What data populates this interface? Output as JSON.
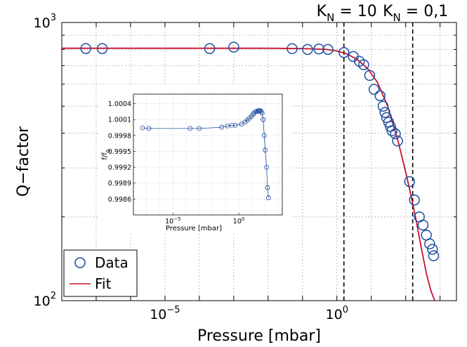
{
  "chart_data": [
    {
      "type": "scatter",
      "xlabel": "Pressure [mbar]",
      "ylabel": "Q−factor",
      "x_scale": "log",
      "y_scale": "log",
      "xlim": [
        1e-08,
        3000
      ],
      "ylim": [
        100,
        1000
      ],
      "x_ticks": [
        {
          "exp": "−5",
          "value": 1e-05
        },
        {
          "exp": "0",
          "value": 1
        }
      ],
      "y_ticks": [
        {
          "exp": "3",
          "value": 1000
        },
        {
          "exp": "2",
          "value": 100
        }
      ],
      "grid": true,
      "legend": {
        "position": "bottom-left",
        "entries": [
          "Data",
          "Fit"
        ]
      },
      "vlines": [
        {
          "x": 1.6,
          "label_main": "K",
          "label_sub": "N",
          "label_value": " = 10"
        },
        {
          "x": 160,
          "label_main": "K",
          "label_sub": "N",
          "label_value": " = 0,1"
        }
      ],
      "series": [
        {
          "name": "Data",
          "style": "marker",
          "color": "#1f4fa0",
          "x": [
            5e-08,
            1.5e-07,
            0.0002,
            0.001,
            0.05,
            0.14,
            0.3,
            0.55,
            1.6,
            3,
            4.5,
            6,
            9,
            12,
            18,
            22,
            25,
            28,
            32,
            36,
            40,
            50,
            58,
            130,
            180,
            250,
            320,
            400,
            500,
            600,
            650
          ],
          "y": [
            806,
            806,
            806,
            815,
            805,
            800,
            803,
            800,
            780,
            755,
            725,
            705,
            645,
            575,
            545,
            500,
            475,
            455,
            438,
            423,
            408,
            398,
            375,
            268,
            230,
            200,
            187,
            172,
            160,
            153,
            145
          ]
        },
        {
          "name": "Fit",
          "style": "line",
          "color": "#c8102e",
          "x": [
            1e-08,
            0.01,
            0.1,
            0.5,
            1,
            2,
            4,
            8,
            15,
            30,
            60,
            100,
            150,
            200,
            300,
            400,
            550,
            700
          ],
          "y": [
            808,
            808,
            806,
            800,
            790,
            770,
            735,
            680,
            610,
            500,
            375,
            290,
            232,
            195,
            150,
            125,
            108,
            100
          ]
        }
      ]
    },
    {
      "type": "line",
      "xlabel": "Pressure [mbar]",
      "ylabel_main": "f/f",
      "ylabel_sub": "0",
      "x_scale": "log",
      "xlim": [
        1e-08,
        2000
      ],
      "ylim": [
        0.9986,
        1.0005
      ],
      "x_ticks": [
        {
          "exp": "−5",
          "value": 1e-05
        },
        {
          "exp": "0",
          "value": 1
        }
      ],
      "y_ticks": [
        {
          "label": "1.0004",
          "value": 1.00035
        },
        {
          "label": "1.0001",
          "value": 1.0001
        },
        {
          "label": "0.9998",
          "value": 0.99985
        },
        {
          "label": "0.9995",
          "value": 0.9996
        },
        {
          "label": "0.9992",
          "value": 0.99935
        },
        {
          "label": "0.9989",
          "value": 0.9991
        },
        {
          "label": "0.9986",
          "value": 0.99885
        }
      ],
      "grid": true,
      "series": [
        {
          "color": "#1f4fa0",
          "x": [
            5e-08,
            1.5e-07,
            0.0002,
            0.001,
            0.05,
            0.14,
            0.3,
            0.55,
            1.6,
            3,
            4.5,
            6,
            9,
            12,
            14,
            18,
            22,
            28,
            32,
            36,
            40,
            50,
            58,
            70,
            85,
            100,
            130,
            150,
            180
          ],
          "y": [
            0.99997,
            0.99996,
            0.99996,
            0.99996,
            0.99998,
            1.0,
            1.00001,
            1.00001,
            1.00003,
            1.00006,
            1.00009,
            1.00012,
            1.00015,
            1.00018,
            1.0002,
            1.00022,
            1.00023,
            1.00023,
            1.00024,
            1.00024,
            1.00024,
            1.00023,
            1.0002,
            1.0001,
            0.99985,
            0.99962,
            0.99935,
            0.99903,
            0.99887
          ]
        }
      ]
    }
  ]
}
